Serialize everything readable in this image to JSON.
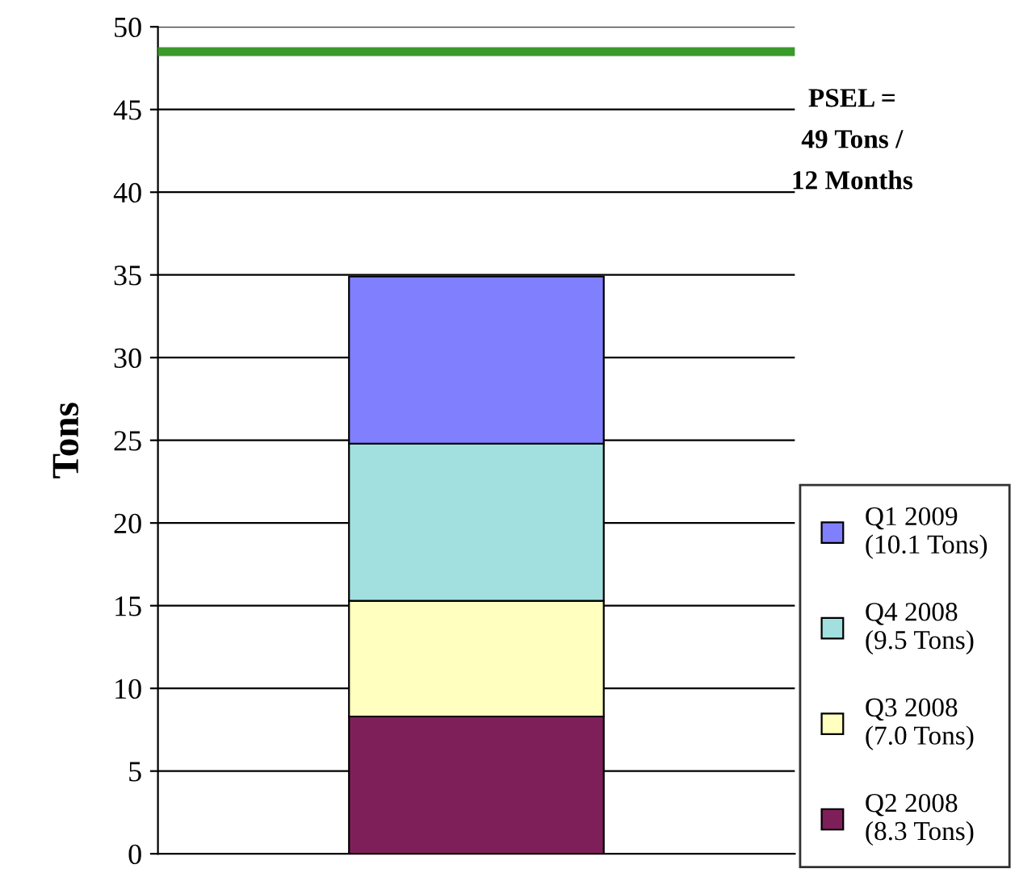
{
  "chart_data": {
    "type": "bar",
    "stacked": true,
    "categories": [
      null
    ],
    "ylabel": "Tons",
    "series": [
      {
        "name": "Q2 2008\n(8.3 Tons)",
        "color": "#7f1f5a",
        "values": [
          8.3
        ]
      },
      {
        "name": "Q3 2008\n(7.0 Tons)",
        "color": "#ffffc0",
        "values": [
          7.0
        ]
      },
      {
        "name": "Q4 2008\n(9.5 Tons)",
        "color": "#a2e0e0",
        "values": [
          9.5
        ]
      },
      {
        "name": "Q1 2009\n(10.1 Tons)",
        "color": "#8080ff",
        "values": [
          10.1
        ]
      }
    ],
    "ylim": [
      0,
      50
    ],
    "yticks": [
      0,
      5,
      10,
      15,
      20,
      25,
      30,
      35,
      40,
      45,
      50
    ],
    "grid": "y",
    "legend": "right",
    "ref_lines": [
      {
        "axis": "y",
        "value": 48.5,
        "label": "PSEL =\n49 Tons /\n12 Months",
        "color": "#3a9a2a",
        "line_style": "solid"
      }
    ]
  }
}
